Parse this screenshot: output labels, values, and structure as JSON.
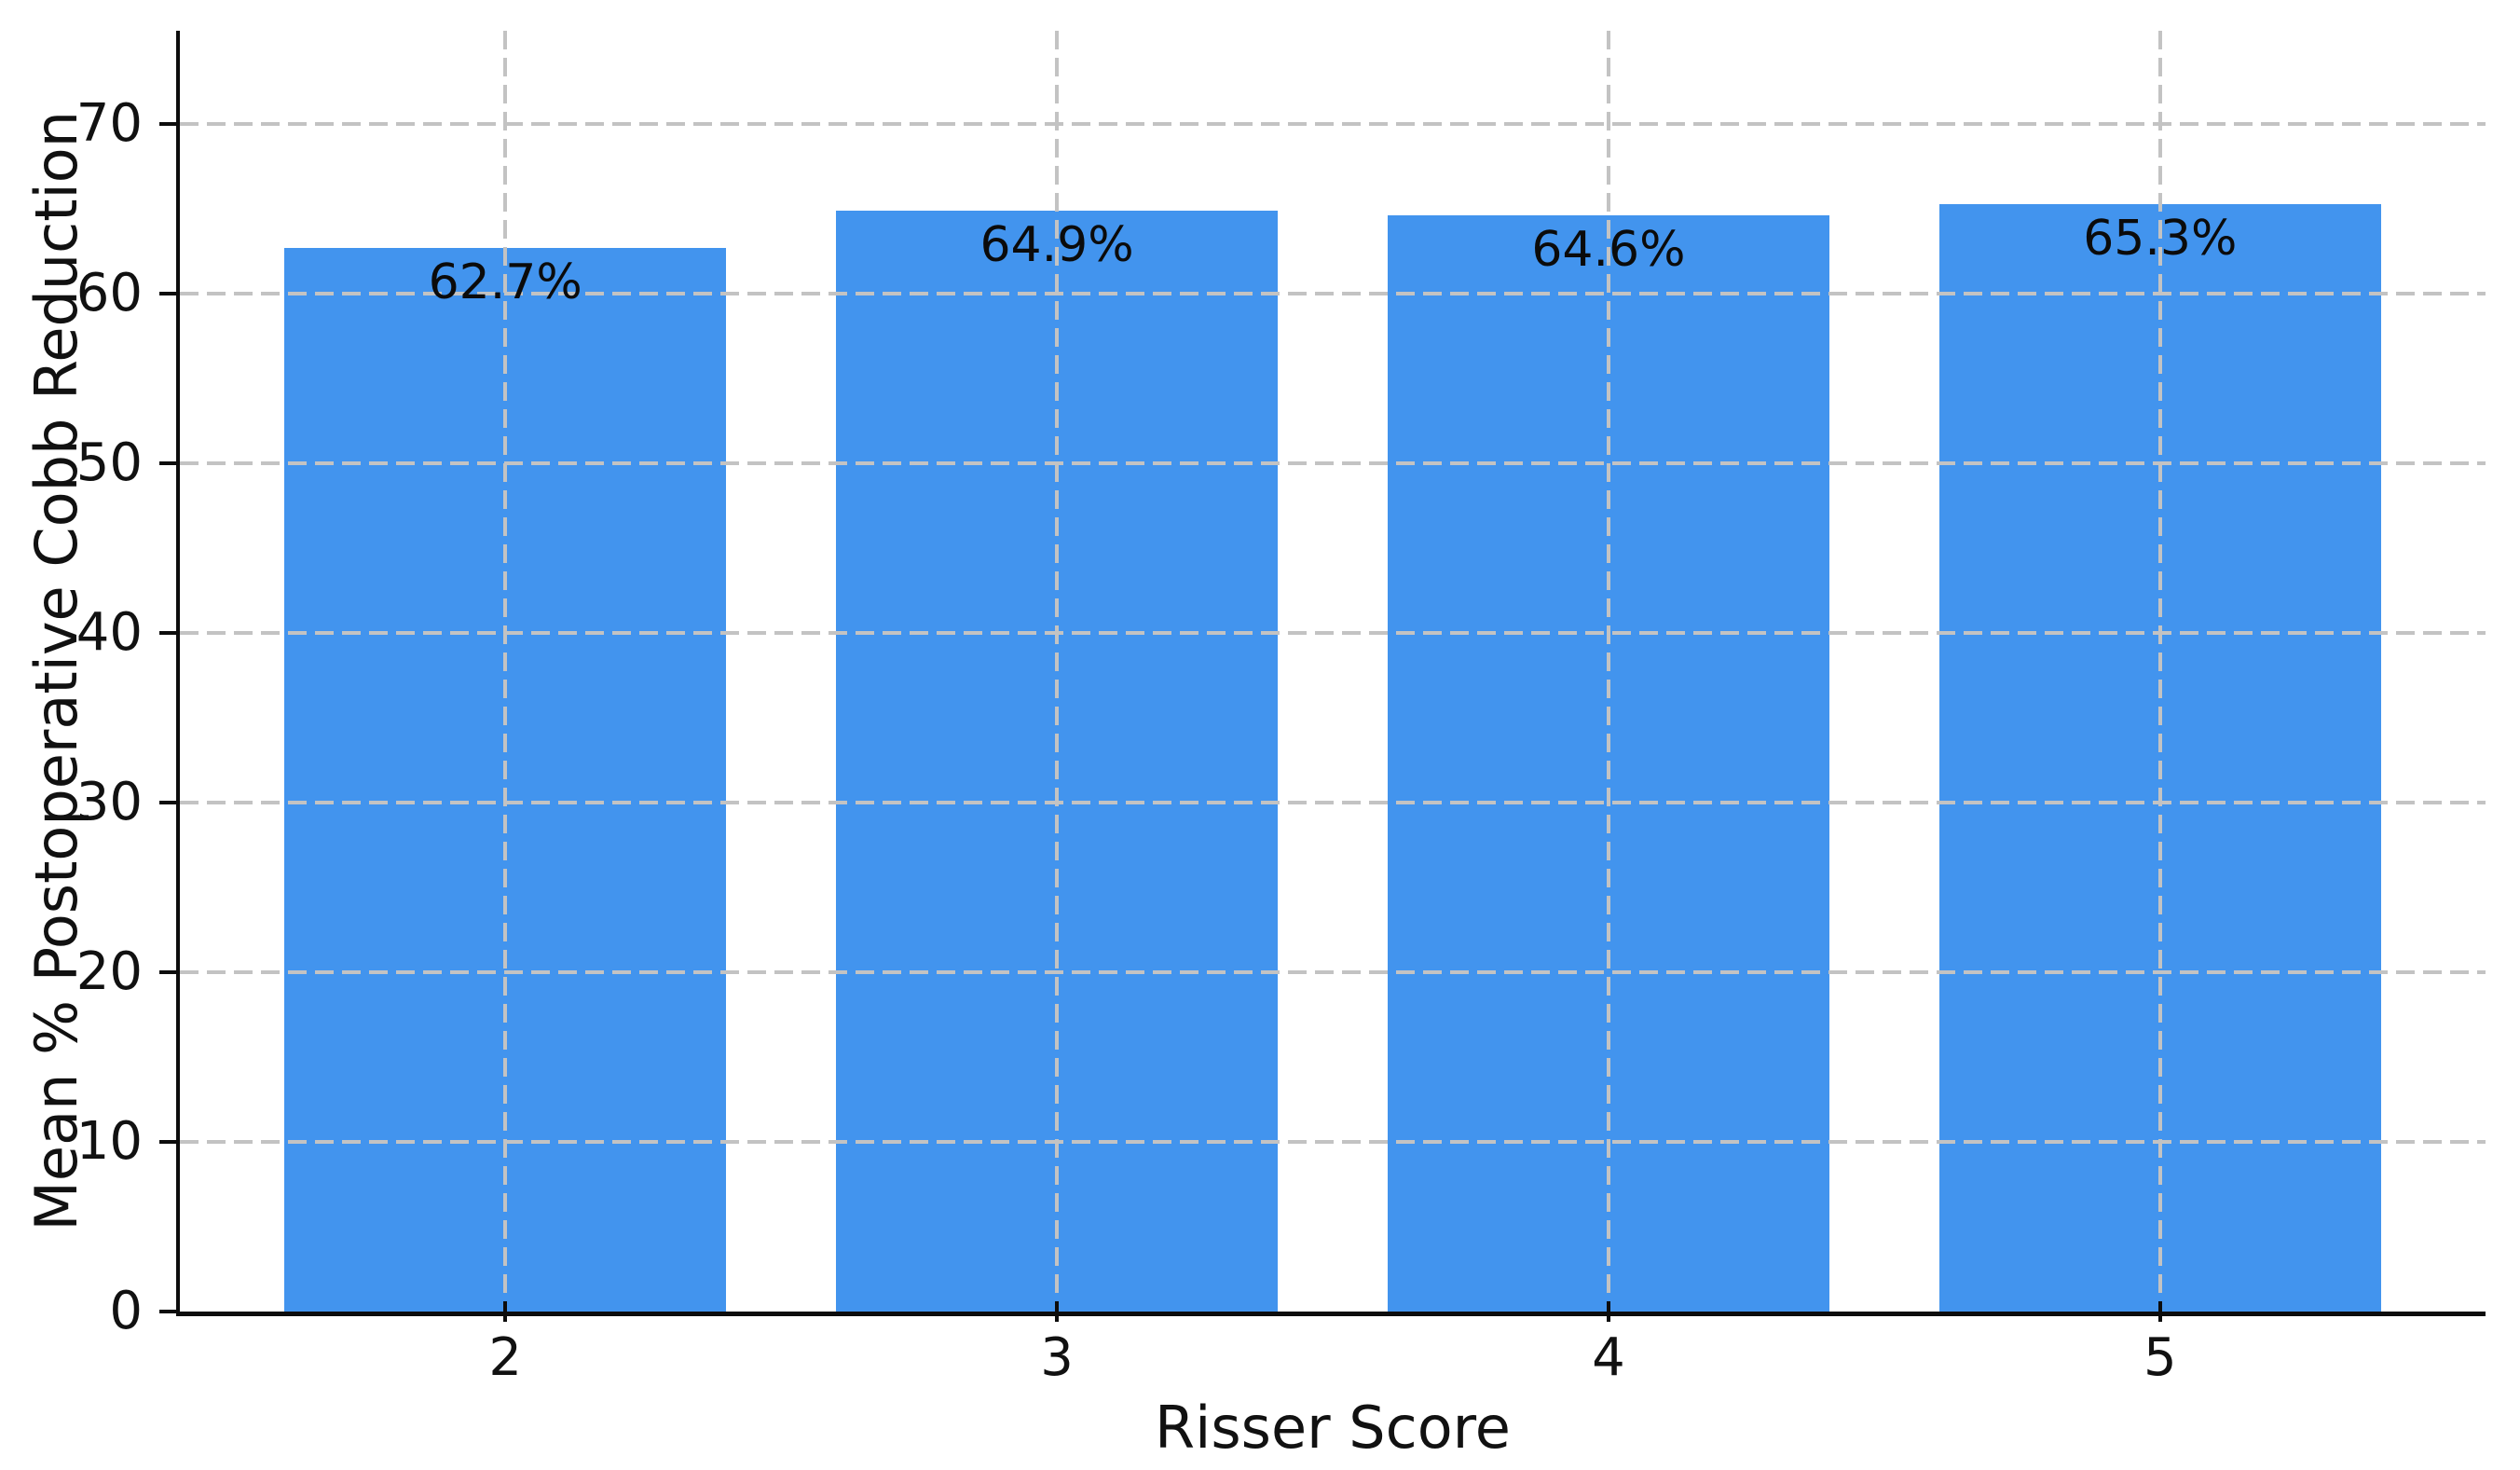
{
  "figure": {
    "xlabel": "Risser Score",
    "ylabel": "Mean % Postoperative Cobb Reduction"
  },
  "chart_data": {
    "type": "bar",
    "categories": [
      "2",
      "3",
      "4",
      "5"
    ],
    "x_positions": [
      2,
      3,
      4,
      5
    ],
    "values": [
      62.7,
      64.9,
      64.6,
      65.3
    ],
    "bar_labels": [
      "62.7%",
      "64.9%",
      "64.6%",
      "65.3%"
    ],
    "title": "",
    "xlabel": "Risser Score",
    "ylabel": "Mean % Postoperative Cobb Reduction",
    "xlim": [
      1.41,
      5.59
    ],
    "ylim": [
      0,
      75.5
    ],
    "yticks": [
      0,
      10,
      20,
      30,
      40,
      50,
      60,
      70
    ],
    "bar_width_fraction": 0.8,
    "grid": true,
    "grid_style": "dashed",
    "legend_visible": false,
    "bar_color": "#4294ee",
    "grid_color": "#c3c3c3",
    "axis_color": "#0d0d0d",
    "text_color": "#111111",
    "background_color": "#ffffff"
  }
}
